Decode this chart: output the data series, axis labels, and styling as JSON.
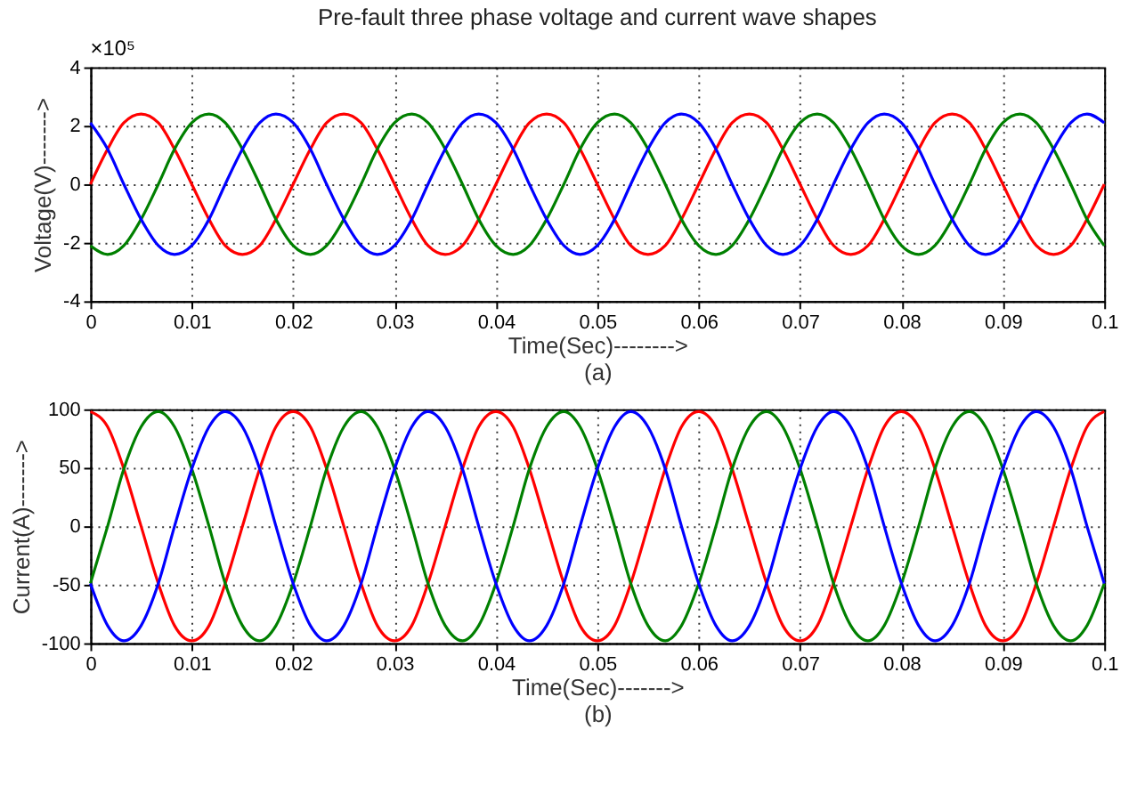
{
  "chart_data": [
    {
      "type": "line",
      "title": "Pre-fault three phase voltage and current wave shapes",
      "xlabel": "Time(Sec)-------->",
      "ylabel": "Voltage(V)------->",
      "annotations": [
        "×10⁵",
        "(a)"
      ],
      "x": [
        0,
        0.0017,
        0.0033,
        0.005,
        0.0067,
        0.0083,
        0.01,
        0.0117,
        0.0133,
        0.015,
        0.0167,
        0.0183,
        0.02,
        0.0217,
        0.0233,
        0.025,
        0.0267,
        0.0283,
        0.03,
        0.0317,
        0.0333,
        0.035,
        0.0367,
        0.0383,
        0.04,
        0.0417,
        0.0433,
        0.045,
        0.0467,
        0.0483,
        0.05,
        0.0517,
        0.0533,
        0.055,
        0.0567,
        0.0583,
        0.06,
        0.0617,
        0.0633,
        0.065,
        0.0667,
        0.0683,
        0.07,
        0.0717,
        0.0733,
        0.075,
        0.0767,
        0.0783,
        0.08,
        0.0817,
        0.0833,
        0.085,
        0.0867,
        0.0883,
        0.09,
        0.0917,
        0.0933,
        0.095,
        0.0967,
        0.0983,
        0.1
      ],
      "series": [
        {
          "color": "#ff0000",
          "values": [
            0,
            1.2,
            2.1,
            2.4,
            2.1,
            1.2,
            0,
            -1.2,
            -2.1,
            -2.4,
            -2.1,
            -1.2,
            0,
            1.2,
            2.1,
            2.4,
            2.1,
            1.2,
            0,
            -1.2,
            -2.1,
            -2.4,
            -2.1,
            -1.2,
            0,
            1.2,
            2.1,
            2.4,
            2.1,
            1.2,
            0,
            -1.2,
            -2.1,
            -2.4,
            -2.1,
            -1.2,
            0,
            1.2,
            2.1,
            2.4,
            2.1,
            1.2,
            0,
            -1.2,
            -2.1,
            -2.4,
            -2.1,
            -1.2,
            0,
            1.2,
            2.1,
            2.4,
            2.1,
            1.2,
            0,
            -1.2,
            -2.1,
            -2.4,
            -2.1,
            -1.2,
            0
          ]
        },
        {
          "color": "#008000",
          "values": [
            -2.1,
            -2.4,
            -2.1,
            -1.2,
            0,
            1.2,
            2.1,
            2.4,
            2.1,
            1.2,
            0,
            -1.2,
            -2.1,
            -2.4,
            -2.1,
            -1.2,
            0,
            1.2,
            2.1,
            2.4,
            2.1,
            1.2,
            0,
            -1.2,
            -2.1,
            -2.4,
            -2.1,
            -1.2,
            0,
            1.2,
            2.1,
            2.4,
            2.1,
            1.2,
            0,
            -1.2,
            -2.1,
            -2.4,
            -2.1,
            -1.2,
            0,
            1.2,
            2.1,
            2.4,
            2.1,
            1.2,
            0,
            -1.2,
            -2.1,
            -2.4,
            -2.1,
            -1.2,
            0,
            1.2,
            2.1,
            2.4,
            2.1,
            1.2,
            0,
            -1.2,
            -2.1
          ]
        },
        {
          "color": "#0000ff",
          "values": [
            2.1,
            1.2,
            0,
            -1.2,
            -2.1,
            -2.4,
            -2.1,
            -1.2,
            0,
            1.2,
            2.1,
            2.4,
            2.1,
            1.2,
            0,
            -1.2,
            -2.1,
            -2.4,
            -2.1,
            -1.2,
            0,
            1.2,
            2.1,
            2.4,
            2.1,
            1.2,
            0,
            -1.2,
            -2.1,
            -2.4,
            -2.1,
            -1.2,
            0,
            1.2,
            2.1,
            2.4,
            2.1,
            1.2,
            0,
            -1.2,
            -2.1,
            -2.4,
            -2.1,
            -1.2,
            0,
            1.2,
            2.1,
            2.4,
            2.1,
            1.2,
            0,
            -1.2,
            -2.1,
            -2.4,
            -2.1,
            -1.2,
            0,
            1.2,
            2.1,
            2.4,
            2.1
          ]
        }
      ],
      "xlim": [
        0,
        0.1
      ],
      "xticks": [
        0,
        0.01,
        0.02,
        0.03,
        0.04,
        0.05,
        0.06,
        0.07,
        0.08,
        0.09,
        0.1
      ],
      "ylim": [
        -4,
        4
      ],
      "yticks": [
        -4,
        -2,
        0,
        2,
        4
      ],
      "grid": true,
      "line_style": "solid"
    },
    {
      "type": "line",
      "xlabel": "Time(Sec)------->",
      "ylabel": "Current(A)------->",
      "annotations": [
        "(b)"
      ],
      "x": [
        0,
        0.0017,
        0.0033,
        0.005,
        0.0067,
        0.0083,
        0.01,
        0.0117,
        0.0133,
        0.015,
        0.0167,
        0.0183,
        0.02,
        0.0217,
        0.0233,
        0.025,
        0.0267,
        0.0283,
        0.03,
        0.0317,
        0.0333,
        0.035,
        0.0367,
        0.0383,
        0.04,
        0.0417,
        0.0433,
        0.045,
        0.0467,
        0.0483,
        0.05,
        0.0517,
        0.0533,
        0.055,
        0.0567,
        0.0583,
        0.06,
        0.0617,
        0.0633,
        0.065,
        0.0667,
        0.0683,
        0.07,
        0.0717,
        0.0733,
        0.075,
        0.0767,
        0.0783,
        0.08,
        0.0817,
        0.0833,
        0.085,
        0.0867,
        0.0883,
        0.09,
        0.0917,
        0.0933,
        0.095,
        0.0967,
        0.0983,
        0.1
      ],
      "series": [
        {
          "color": "#ff0000",
          "values": [
            98,
            85,
            49,
            0,
            -49,
            -85,
            -98,
            -85,
            -49,
            0,
            49,
            85,
            98,
            85,
            49,
            0,
            -49,
            -85,
            -98,
            -85,
            -49,
            0,
            49,
            85,
            98,
            85,
            49,
            0,
            -49,
            -85,
            -98,
            -85,
            -49,
            0,
            49,
            85,
            98,
            85,
            49,
            0,
            -49,
            -85,
            -98,
            -85,
            -49,
            0,
            49,
            85,
            98,
            85,
            49,
            0,
            -49,
            -85,
            -98,
            -85,
            -49,
            0,
            49,
            85,
            98
          ]
        },
        {
          "color": "#008000",
          "values": [
            -49,
            0,
            49,
            85,
            98,
            85,
            49,
            0,
            -49,
            -85,
            -98,
            -85,
            -49,
            0,
            49,
            85,
            98,
            85,
            49,
            0,
            -49,
            -85,
            -98,
            -85,
            -49,
            0,
            49,
            85,
            98,
            85,
            49,
            0,
            -49,
            -85,
            -98,
            -85,
            -49,
            0,
            49,
            85,
            98,
            85,
            49,
            0,
            -49,
            -85,
            -98,
            -85,
            -49,
            0,
            49,
            85,
            98,
            85,
            49,
            0,
            -49,
            -85,
            -98,
            -85,
            -49
          ]
        },
        {
          "color": "#0000ff",
          "values": [
            -49,
            -85,
            -98,
            -85,
            -49,
            0,
            49,
            85,
            98,
            85,
            49,
            0,
            -49,
            -85,
            -98,
            -85,
            -49,
            0,
            49,
            85,
            98,
            85,
            49,
            0,
            -49,
            -85,
            -98,
            -85,
            -49,
            0,
            49,
            85,
            98,
            85,
            49,
            0,
            -49,
            -85,
            -98,
            -85,
            -49,
            0,
            49,
            85,
            98,
            85,
            49,
            0,
            -49,
            -85,
            -98,
            -85,
            -49,
            0,
            49,
            85,
            98,
            85,
            49,
            0,
            -49
          ]
        }
      ],
      "xlim": [
        0,
        0.1
      ],
      "xticks": [
        0,
        0.01,
        0.02,
        0.03,
        0.04,
        0.05,
        0.06,
        0.07,
        0.08,
        0.09,
        0.1
      ],
      "ylim": [
        -100,
        100
      ],
      "yticks": [
        -100,
        -50,
        0,
        50,
        100
      ],
      "grid": true,
      "line_style": "solid"
    }
  ]
}
